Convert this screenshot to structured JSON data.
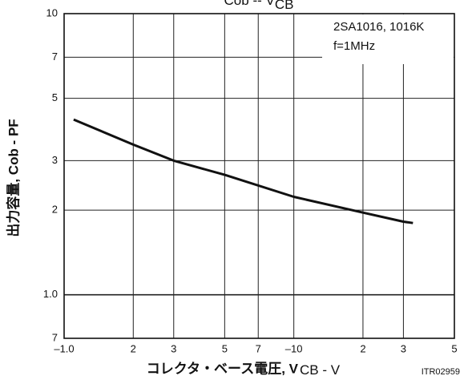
{
  "chart_data": {
    "type": "line",
    "title": {
      "main": "Cob  --  V",
      "sub": "CB"
    },
    "annotation": [
      "2SA1016, 1016K",
      "f=1MHz"
    ],
    "x_label": {
      "main": "コレクタ・ベース電圧, V",
      "sub": "CB",
      "unit": " - V"
    },
    "y_label": "出力容量, Cob - PF",
    "figure_id": "ITR02959",
    "x_scale": "log",
    "y_scale": "log",
    "grid": true,
    "xlim": [
      1,
      50
    ],
    "xticks": [
      {
        "value": 1,
        "label": "–1.0"
      },
      2,
      3,
      5,
      7,
      {
        "value": 10,
        "label": "–10"
      },
      {
        "value": 20,
        "label": "2"
      },
      {
        "value": 30,
        "label": "3"
      },
      {
        "value": 50,
        "label": "5"
      }
    ],
    "ylim": [
      0.7,
      10
    ],
    "yticks": [
      {
        "value": 0.7,
        "label": "7"
      },
      {
        "value": 1,
        "label": "1.0"
      },
      2,
      3,
      5,
      7,
      10
    ],
    "series": [
      {
        "color": "#111111",
        "x": [
          1.1,
          2,
          3,
          5,
          10,
          20,
          30,
          33
        ],
        "values": [
          4.2,
          3.42,
          3.0,
          2.67,
          2.23,
          1.96,
          1.82,
          1.8
        ]
      }
    ]
  }
}
